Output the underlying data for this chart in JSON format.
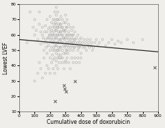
{
  "title": "",
  "xlabel": "Cumulative dose of doxorubicin",
  "ylabel": "Lowest LVEF",
  "xlim": [
    0,
    900
  ],
  "ylim": [
    10,
    80
  ],
  "xticks": [
    0,
    100,
    200,
    300,
    400,
    500,
    600,
    700,
    800,
    900
  ],
  "yticks": [
    10,
    20,
    30,
    40,
    50,
    60,
    70,
    80
  ],
  "trend_x": [
    0,
    900
  ],
  "trend_y": [
    57,
    49
  ],
  "circle_points": [
    [
      50,
      55
    ],
    [
      70,
      75
    ],
    [
      90,
      65
    ],
    [
      100,
      70
    ],
    [
      100,
      60
    ],
    [
      110,
      63
    ],
    [
      120,
      57
    ],
    [
      130,
      67
    ],
    [
      130,
      75
    ],
    [
      140,
      62
    ],
    [
      140,
      54
    ],
    [
      150,
      60
    ],
    [
      150,
      65
    ],
    [
      155,
      58
    ],
    [
      160,
      55
    ],
    [
      160,
      50
    ],
    [
      165,
      62
    ],
    [
      170,
      57
    ],
    [
      170,
      66
    ],
    [
      175,
      52
    ],
    [
      180,
      70
    ],
    [
      180,
      62
    ],
    [
      180,
      55
    ],
    [
      180,
      48
    ],
    [
      185,
      58
    ],
    [
      190,
      64
    ],
    [
      190,
      58
    ],
    [
      190,
      53
    ],
    [
      195,
      60
    ],
    [
      200,
      72
    ],
    [
      200,
      65
    ],
    [
      200,
      60
    ],
    [
      200,
      55
    ],
    [
      200,
      50
    ],
    [
      200,
      45
    ],
    [
      205,
      62
    ],
    [
      205,
      57
    ],
    [
      210,
      68
    ],
    [
      210,
      63
    ],
    [
      210,
      58
    ],
    [
      210,
      52
    ],
    [
      215,
      60
    ],
    [
      215,
      55
    ],
    [
      215,
      47
    ],
    [
      220,
      70
    ],
    [
      220,
      65
    ],
    [
      220,
      60
    ],
    [
      220,
      55
    ],
    [
      220,
      50
    ],
    [
      220,
      44
    ],
    [
      225,
      67
    ],
    [
      225,
      62
    ],
    [
      225,
      57
    ],
    [
      225,
      52
    ],
    [
      230,
      75
    ],
    [
      230,
      70
    ],
    [
      230,
      65
    ],
    [
      230,
      60
    ],
    [
      230,
      55
    ],
    [
      230,
      50
    ],
    [
      230,
      45
    ],
    [
      235,
      68
    ],
    [
      235,
      63
    ],
    [
      235,
      58
    ],
    [
      235,
      53
    ],
    [
      240,
      78
    ],
    [
      240,
      73
    ],
    [
      240,
      67
    ],
    [
      240,
      63
    ],
    [
      240,
      58
    ],
    [
      240,
      53
    ],
    [
      240,
      48
    ],
    [
      240,
      43
    ],
    [
      245,
      70
    ],
    [
      245,
      65
    ],
    [
      245,
      60
    ],
    [
      245,
      55
    ],
    [
      245,
      50
    ],
    [
      250,
      75
    ],
    [
      250,
      70
    ],
    [
      250,
      65
    ],
    [
      250,
      60
    ],
    [
      250,
      55
    ],
    [
      250,
      50
    ],
    [
      250,
      45
    ],
    [
      255,
      67
    ],
    [
      255,
      62
    ],
    [
      255,
      57
    ],
    [
      255,
      52
    ],
    [
      255,
      47
    ],
    [
      260,
      70
    ],
    [
      260,
      65
    ],
    [
      260,
      60
    ],
    [
      260,
      55
    ],
    [
      260,
      50
    ],
    [
      260,
      45
    ],
    [
      265,
      67
    ],
    [
      265,
      62
    ],
    [
      265,
      57
    ],
    [
      265,
      52
    ],
    [
      270,
      72
    ],
    [
      270,
      67
    ],
    [
      270,
      62
    ],
    [
      270,
      57
    ],
    [
      270,
      52
    ],
    [
      270,
      47
    ],
    [
      275,
      65
    ],
    [
      275,
      60
    ],
    [
      275,
      55
    ],
    [
      280,
      70
    ],
    [
      280,
      65
    ],
    [
      280,
      60
    ],
    [
      280,
      55
    ],
    [
      280,
      50
    ],
    [
      280,
      45
    ],
    [
      285,
      63
    ],
    [
      285,
      58
    ],
    [
      290,
      68
    ],
    [
      290,
      63
    ],
    [
      290,
      58
    ],
    [
      290,
      53
    ],
    [
      290,
      48
    ],
    [
      295,
      62
    ],
    [
      295,
      57
    ],
    [
      295,
      52
    ],
    [
      300,
      73
    ],
    [
      300,
      68
    ],
    [
      300,
      63
    ],
    [
      300,
      58
    ],
    [
      300,
      53
    ],
    [
      300,
      48
    ],
    [
      300,
      43
    ],
    [
      305,
      65
    ],
    [
      305,
      60
    ],
    [
      305,
      55
    ],
    [
      305,
      50
    ],
    [
      310,
      70
    ],
    [
      310,
      65
    ],
    [
      310,
      60
    ],
    [
      310,
      55
    ],
    [
      310,
      50
    ],
    [
      315,
      58
    ],
    [
      315,
      53
    ],
    [
      315,
      48
    ],
    [
      320,
      67
    ],
    [
      320,
      62
    ],
    [
      320,
      57
    ],
    [
      320,
      52
    ],
    [
      325,
      60
    ],
    [
      325,
      55
    ],
    [
      330,
      65
    ],
    [
      330,
      60
    ],
    [
      330,
      55
    ],
    [
      330,
      50
    ],
    [
      335,
      57
    ],
    [
      335,
      52
    ],
    [
      340,
      63
    ],
    [
      340,
      58
    ],
    [
      340,
      53
    ],
    [
      345,
      60
    ],
    [
      345,
      55
    ],
    [
      350,
      65
    ],
    [
      350,
      60
    ],
    [
      350,
      55
    ],
    [
      350,
      50
    ],
    [
      355,
      57
    ],
    [
      355,
      52
    ],
    [
      360,
      62
    ],
    [
      360,
      57
    ],
    [
      360,
      52
    ],
    [
      365,
      55
    ],
    [
      370,
      58
    ],
    [
      375,
      53
    ],
    [
      380,
      60
    ],
    [
      380,
      55
    ],
    [
      380,
      50
    ],
    [
      385,
      52
    ],
    [
      390,
      57
    ],
    [
      390,
      52
    ],
    [
      395,
      55
    ],
    [
      400,
      58
    ],
    [
      400,
      53
    ],
    [
      400,
      48
    ],
    [
      410,
      55
    ],
    [
      415,
      52
    ],
    [
      420,
      57
    ],
    [
      425,
      52
    ],
    [
      430,
      55
    ],
    [
      435,
      50
    ],
    [
      440,
      57
    ],
    [
      445,
      53
    ],
    [
      450,
      55
    ],
    [
      455,
      52
    ],
    [
      460,
      57
    ],
    [
      465,
      53
    ],
    [
      470,
      55
    ],
    [
      475,
      50
    ],
    [
      480,
      52
    ],
    [
      490,
      55
    ],
    [
      500,
      57
    ],
    [
      510,
      53
    ],
    [
      520,
      55
    ],
    [
      540,
      57
    ],
    [
      560,
      53
    ],
    [
      580,
      55
    ],
    [
      600,
      57
    ],
    [
      620,
      54
    ],
    [
      640,
      56
    ],
    [
      660,
      55
    ],
    [
      700,
      57
    ],
    [
      740,
      55
    ],
    [
      800,
      57
    ],
    [
      100,
      30
    ],
    [
      120,
      35
    ],
    [
      130,
      42
    ],
    [
      140,
      38
    ],
    [
      150,
      32
    ],
    [
      160,
      45
    ],
    [
      170,
      35
    ],
    [
      180,
      40
    ],
    [
      190,
      38
    ],
    [
      200,
      35
    ],
    [
      210,
      42
    ],
    [
      220,
      38
    ],
    [
      230,
      35
    ],
    [
      240,
      40
    ],
    [
      250,
      38
    ],
    [
      260,
      42
    ],
    [
      270,
      45
    ],
    [
      280,
      42
    ],
    [
      290,
      38
    ],
    [
      300,
      42
    ],
    [
      310,
      45
    ],
    [
      320,
      42
    ],
    [
      330,
      38
    ],
    [
      340,
      45
    ],
    [
      350,
      42
    ],
    [
      360,
      45
    ],
    [
      370,
      42
    ],
    [
      380,
      45
    ],
    [
      390,
      42
    ],
    [
      400,
      45
    ]
  ],
  "cross_points": [
    [
      230,
      17
    ],
    [
      290,
      27
    ],
    [
      295,
      25
    ],
    [
      305,
      23
    ],
    [
      360,
      30
    ],
    [
      880,
      39
    ]
  ],
  "circle_color": "#aaaaaa",
  "cross_color": "#555555",
  "line_color": "#222222",
  "bg_color": "#f0eeea",
  "font_size_label": 5.5,
  "font_size_tick": 4.5
}
